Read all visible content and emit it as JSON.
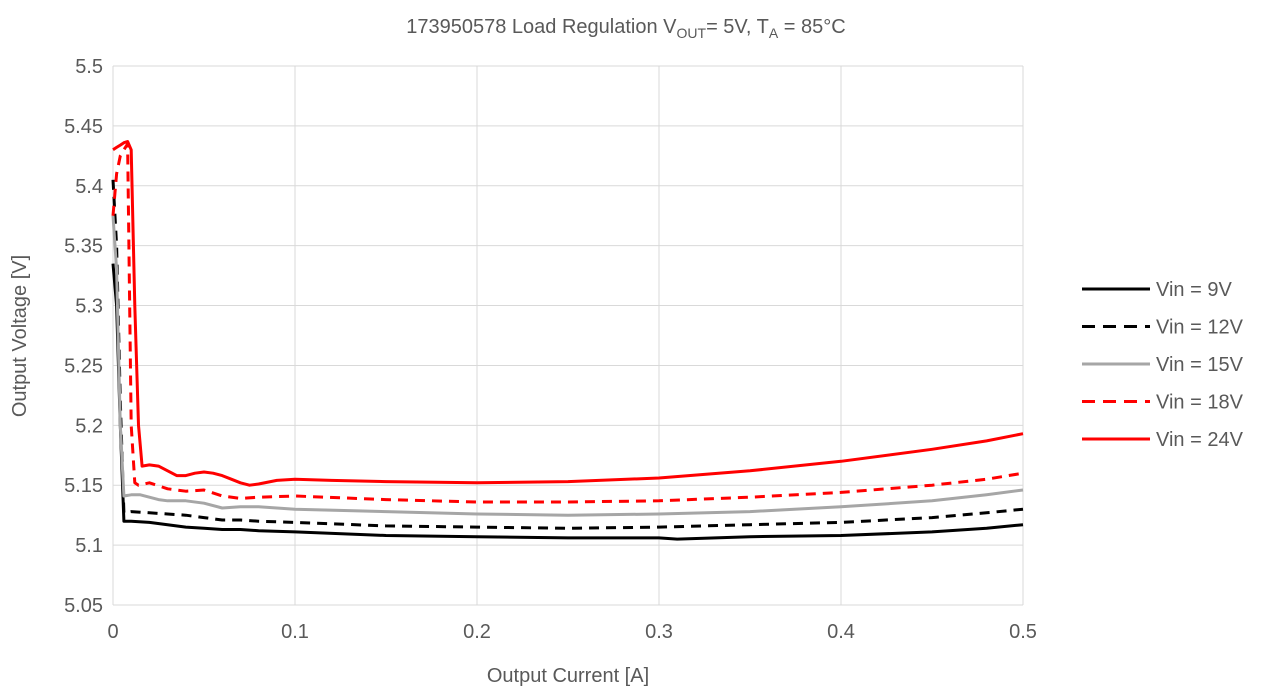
{
  "chart_data": {
    "type": "line",
    "title": {
      "prefix": "173950578   Load Regulation   V",
      "vout_sub": "OUT",
      "mid": "= 5V, T",
      "ta_sub": "A",
      "suffix": " = 85°C"
    },
    "xlabel": "Output Current [A]",
    "ylabel": "Output Voltage [V]",
    "xlim": [
      0,
      0.5
    ],
    "ylim": [
      5.05,
      5.5
    ],
    "xticks": [
      0,
      0.1,
      0.2,
      0.3,
      0.4,
      0.5
    ],
    "xtick_labels": [
      "0",
      "0.1",
      "0.2",
      "0.3",
      "0.4",
      "0.5"
    ],
    "yticks": [
      5.05,
      5.1,
      5.15,
      5.2,
      5.25,
      5.3,
      5.35,
      5.4,
      5.45,
      5.5
    ],
    "ytick_labels": [
      "5.05",
      "5.1",
      "5.15",
      "5.2",
      "5.25",
      "5.3",
      "5.35",
      "5.4",
      "5.45",
      "5.5"
    ],
    "grid": "vertical and horizontal",
    "legend_position": "right",
    "series": [
      {
        "name": "Vin = 9V",
        "color": "#000000",
        "dash": "solid",
        "x": [
          0,
          0.002,
          0.004,
          0.006,
          0.01,
          0.02,
          0.03,
          0.04,
          0.05,
          0.06,
          0.07,
          0.08,
          0.1,
          0.15,
          0.2,
          0.25,
          0.3,
          0.31,
          0.35,
          0.4,
          0.45,
          0.48,
          0.5
        ],
        "y": [
          5.335,
          5.3,
          5.2,
          5.12,
          5.12,
          5.119,
          5.117,
          5.115,
          5.114,
          5.113,
          5.113,
          5.112,
          5.111,
          5.108,
          5.107,
          5.106,
          5.106,
          5.105,
          5.107,
          5.108,
          5.111,
          5.114,
          5.117
        ]
      },
      {
        "name": "Vin = 12V",
        "color": "#000000",
        "dash": "dashed",
        "x": [
          0,
          0.002,
          0.004,
          0.006,
          0.01,
          0.02,
          0.03,
          0.04,
          0.05,
          0.06,
          0.07,
          0.08,
          0.1,
          0.15,
          0.2,
          0.25,
          0.3,
          0.35,
          0.4,
          0.45,
          0.48,
          0.5
        ],
        "y": [
          5.405,
          5.35,
          5.22,
          5.127,
          5.128,
          5.127,
          5.126,
          5.125,
          5.123,
          5.121,
          5.121,
          5.12,
          5.119,
          5.116,
          5.115,
          5.114,
          5.115,
          5.117,
          5.119,
          5.123,
          5.127,
          5.13
        ]
      },
      {
        "name": "Vin = 15V",
        "color": "#a6a6a6",
        "dash": "solid",
        "x": [
          0,
          0.002,
          0.004,
          0.006,
          0.01,
          0.015,
          0.02,
          0.025,
          0.03,
          0.04,
          0.05,
          0.06,
          0.07,
          0.08,
          0.1,
          0.15,
          0.2,
          0.25,
          0.3,
          0.35,
          0.4,
          0.45,
          0.48,
          0.5
        ],
        "y": [
          5.375,
          5.33,
          5.2,
          5.141,
          5.142,
          5.142,
          5.14,
          5.138,
          5.137,
          5.137,
          5.135,
          5.131,
          5.132,
          5.132,
          5.13,
          5.128,
          5.126,
          5.125,
          5.126,
          5.128,
          5.132,
          5.137,
          5.142,
          5.146
        ]
      },
      {
        "name": "Vin = 18V",
        "color": "#ff0000",
        "dash": "dashed",
        "x": [
          0,
          0.002,
          0.004,
          0.006,
          0.008,
          0.01,
          0.012,
          0.014,
          0.02,
          0.03,
          0.04,
          0.05,
          0.06,
          0.07,
          0.08,
          0.1,
          0.15,
          0.2,
          0.25,
          0.3,
          0.35,
          0.4,
          0.45,
          0.48,
          0.5
        ],
        "y": [
          5.375,
          5.41,
          5.425,
          5.43,
          5.435,
          5.2,
          5.152,
          5.15,
          5.152,
          5.147,
          5.145,
          5.146,
          5.141,
          5.139,
          5.14,
          5.141,
          5.138,
          5.136,
          5.136,
          5.137,
          5.14,
          5.144,
          5.15,
          5.155,
          5.16
        ]
      },
      {
        "name": "Vin = 24V",
        "color": "#ff0000",
        "dash": "solid",
        "x": [
          0,
          0.002,
          0.004,
          0.006,
          0.008,
          0.01,
          0.012,
          0.014,
          0.016,
          0.02,
          0.025,
          0.03,
          0.035,
          0.04,
          0.045,
          0.05,
          0.055,
          0.06,
          0.065,
          0.07,
          0.075,
          0.08,
          0.09,
          0.1,
          0.12,
          0.15,
          0.2,
          0.25,
          0.3,
          0.35,
          0.4,
          0.45,
          0.48,
          0.5
        ],
        "y": [
          5.43,
          5.432,
          5.434,
          5.436,
          5.437,
          5.43,
          5.3,
          5.2,
          5.166,
          5.167,
          5.166,
          5.162,
          5.158,
          5.158,
          5.16,
          5.161,
          5.16,
          5.158,
          5.155,
          5.152,
          5.15,
          5.151,
          5.154,
          5.155,
          5.154,
          5.153,
          5.152,
          5.153,
          5.156,
          5.162,
          5.17,
          5.18,
          5.187,
          5.193
        ]
      }
    ]
  }
}
